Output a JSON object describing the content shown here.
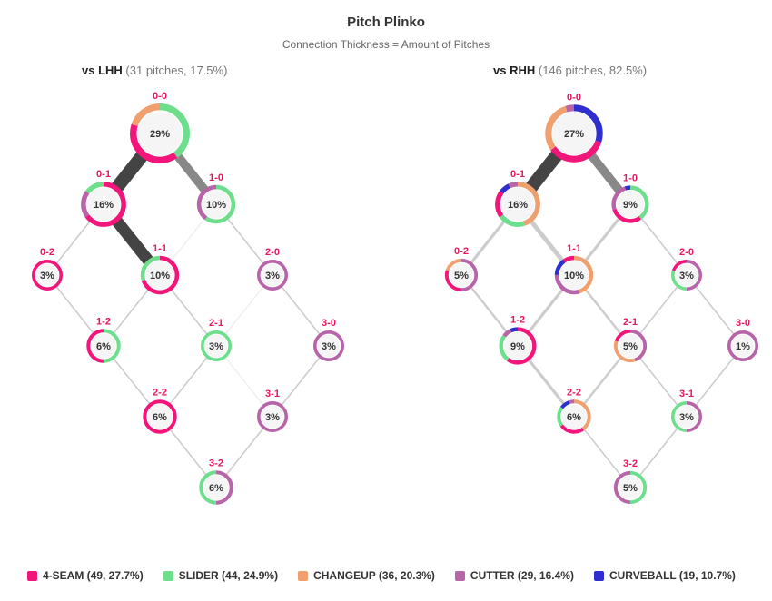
{
  "title": "Pitch Plinko",
  "subtitle": "Connection Thickness = Amount of Pitches",
  "colors": {
    "4SEAM": "#f2157a",
    "SLIDER": "#6ddf8c",
    "CHANGEUP": "#f0a06e",
    "CUTTER": "#b764a8",
    "CURVEBALL": "#2f2fd0"
  },
  "legend": [
    {
      "key": "4SEAM",
      "label": "4-SEAM (49, 27.7%)"
    },
    {
      "key": "SLIDER",
      "label": "SLIDER (44, 24.9%)"
    },
    {
      "key": "CHANGEUP",
      "label": "CHANGEUP (36, 20.3%)"
    },
    {
      "key": "CUTTER",
      "label": "CUTTER (29, 16.4%)"
    },
    {
      "key": "CURVEBALL",
      "label": "CURVEBALL (10.7%)"
    }
  ],
  "chart_data": [
    {
      "type": "plinko",
      "panel": "lhh",
      "title_bold": "vs LHH",
      "title_meta": "(31 pitches, 17.5%)",
      "nodes": [
        {
          "count": "0-0",
          "label": "29%",
          "pct": 29,
          "mix": [
            {
              "p": "SLIDER",
              "v": 0.4
            },
            {
              "p": "4SEAM",
              "v": 0.4
            },
            {
              "p": "CHANGEUP",
              "v": 0.2
            }
          ]
        },
        {
          "count": "0-1",
          "label": "16%",
          "pct": 16,
          "mix": [
            {
              "p": "4SEAM",
              "v": 0.65
            },
            {
              "p": "CUTTER",
              "v": 0.2
            },
            {
              "p": "SLIDER",
              "v": 0.15
            }
          ]
        },
        {
          "count": "1-0",
          "label": "10%",
          "pct": 10,
          "mix": [
            {
              "p": "SLIDER",
              "v": 0.6
            },
            {
              "p": "CUTTER",
              "v": 0.4
            }
          ]
        },
        {
          "count": "0-2",
          "label": "3%",
          "pct": 3,
          "mix": [
            {
              "p": "4SEAM",
              "v": 1.0
            }
          ]
        },
        {
          "count": "1-1",
          "label": "10%",
          "pct": 10,
          "mix": [
            {
              "p": "4SEAM",
              "v": 0.7
            },
            {
              "p": "SLIDER",
              "v": 0.3
            }
          ]
        },
        {
          "count": "2-0",
          "label": "3%",
          "pct": 3,
          "mix": [
            {
              "p": "CUTTER",
              "v": 1.0
            }
          ]
        },
        {
          "count": "1-2",
          "label": "6%",
          "pct": 6,
          "mix": [
            {
              "p": "SLIDER",
              "v": 0.5
            },
            {
              "p": "4SEAM",
              "v": 0.5
            }
          ]
        },
        {
          "count": "2-1",
          "label": "3%",
          "pct": 3,
          "mix": [
            {
              "p": "SLIDER",
              "v": 1.0
            }
          ]
        },
        {
          "count": "3-0",
          "label": "3%",
          "pct": 3,
          "mix": [
            {
              "p": "CUTTER",
              "v": 1.0
            }
          ]
        },
        {
          "count": "2-2",
          "label": "6%",
          "pct": 6,
          "mix": [
            {
              "p": "4SEAM",
              "v": 1.0
            }
          ]
        },
        {
          "count": "3-1",
          "label": "3%",
          "pct": 3,
          "mix": [
            {
              "p": "CUTTER",
              "v": 1.0
            }
          ]
        },
        {
          "count": "3-2",
          "label": "6%",
          "pct": 6,
          "mix": [
            {
              "p": "CUTTER",
              "v": 0.5
            },
            {
              "p": "SLIDER",
              "v": 0.5
            }
          ]
        }
      ],
      "links": [
        {
          "from": "0-0",
          "to": "0-1",
          "w": 9
        },
        {
          "from": "0-0",
          "to": "1-0",
          "w": 6
        },
        {
          "from": "0-1",
          "to": "0-2",
          "w": 1
        },
        {
          "from": "0-1",
          "to": "1-1",
          "w": 8
        },
        {
          "from": "1-0",
          "to": "1-1",
          "w": 0.5
        },
        {
          "from": "1-0",
          "to": "2-0",
          "w": 1
        },
        {
          "from": "0-2",
          "to": "1-2",
          "w": 1
        },
        {
          "from": "1-1",
          "to": "1-2",
          "w": 1
        },
        {
          "from": "1-1",
          "to": "2-1",
          "w": 1
        },
        {
          "from": "2-0",
          "to": "2-1",
          "w": 0.5
        },
        {
          "from": "2-0",
          "to": "3-0",
          "w": 1
        },
        {
          "from": "1-2",
          "to": "2-2",
          "w": 1
        },
        {
          "from": "2-1",
          "to": "2-2",
          "w": 1
        },
        {
          "from": "2-1",
          "to": "3-1",
          "w": 0.5
        },
        {
          "from": "3-0",
          "to": "3-1",
          "w": 1
        },
        {
          "from": "2-2",
          "to": "3-2",
          "w": 1
        },
        {
          "from": "3-1",
          "to": "3-2",
          "w": 1
        }
      ]
    },
    {
      "type": "plinko",
      "panel": "rhh",
      "title_bold": "vs RHH",
      "title_meta": "(146 pitches, 82.5%)",
      "nodes": [
        {
          "count": "0-0",
          "label": "27%",
          "pct": 27,
          "mix": [
            {
              "p": "CURVEBALL",
              "v": 0.3
            },
            {
              "p": "4SEAM",
              "v": 0.35
            },
            {
              "p": "CHANGEUP",
              "v": 0.3
            },
            {
              "p": "CUTTER",
              "v": 0.05
            }
          ]
        },
        {
          "count": "0-1",
          "label": "16%",
          "pct": 16,
          "mix": [
            {
              "p": "CHANGEUP",
              "v": 0.45
            },
            {
              "p": "SLIDER",
              "v": 0.2
            },
            {
              "p": "4SEAM",
              "v": 0.2
            },
            {
              "p": "CURVEBALL",
              "v": 0.08
            },
            {
              "p": "CUTTER",
              "v": 0.07
            }
          ]
        },
        {
          "count": "1-0",
          "label": "9%",
          "pct": 9,
          "mix": [
            {
              "p": "SLIDER",
              "v": 0.4
            },
            {
              "p": "4SEAM",
              "v": 0.3
            },
            {
              "p": "CUTTER",
              "v": 0.25
            },
            {
              "p": "CURVEBALL",
              "v": 0.05
            }
          ]
        },
        {
          "count": "0-2",
          "label": "5%",
          "pct": 5,
          "mix": [
            {
              "p": "CUTTER",
              "v": 0.5
            },
            {
              "p": "4SEAM",
              "v": 0.3
            },
            {
              "p": "CHANGEUP",
              "v": 0.2
            }
          ]
        },
        {
          "count": "1-1",
          "label": "10%",
          "pct": 10,
          "mix": [
            {
              "p": "CHANGEUP",
              "v": 0.45
            },
            {
              "p": "CUTTER",
              "v": 0.3
            },
            {
              "p": "CURVEBALL",
              "v": 0.15
            },
            {
              "p": "4SEAM",
              "v": 0.1
            }
          ]
        },
        {
          "count": "2-0",
          "label": "3%",
          "pct": 3,
          "mix": [
            {
              "p": "CUTTER",
              "v": 0.5
            },
            {
              "p": "SLIDER",
              "v": 0.3
            },
            {
              "p": "4SEAM",
              "v": 0.2
            }
          ]
        },
        {
          "count": "1-2",
          "label": "9%",
          "pct": 9,
          "mix": [
            {
              "p": "4SEAM",
              "v": 0.6
            },
            {
              "p": "SLIDER",
              "v": 0.25
            },
            {
              "p": "CUTTER",
              "v": 0.08
            },
            {
              "p": "CURVEBALL",
              "v": 0.07
            }
          ]
        },
        {
          "count": "2-1",
          "label": "5%",
          "pct": 5,
          "mix": [
            {
              "p": "CUTTER",
              "v": 0.45
            },
            {
              "p": "CHANGEUP",
              "v": 0.35
            },
            {
              "p": "4SEAM",
              "v": 0.2
            }
          ]
        },
        {
          "count": "3-0",
          "label": "1%",
          "pct": 1,
          "mix": [
            {
              "p": "CUTTER",
              "v": 1.0
            }
          ]
        },
        {
          "count": "2-2",
          "label": "6%",
          "pct": 6,
          "mix": [
            {
              "p": "CHANGEUP",
              "v": 0.4
            },
            {
              "p": "4SEAM",
              "v": 0.25
            },
            {
              "p": "SLIDER",
              "v": 0.2
            },
            {
              "p": "CURVEBALL",
              "v": 0.1
            },
            {
              "p": "CUTTER",
              "v": 0.05
            }
          ]
        },
        {
          "count": "3-1",
          "label": "3%",
          "pct": 3,
          "mix": [
            {
              "p": "CUTTER",
              "v": 0.5
            },
            {
              "p": "SLIDER",
              "v": 0.5
            }
          ]
        },
        {
          "count": "3-2",
          "label": "5%",
          "pct": 5,
          "mix": [
            {
              "p": "SLIDER",
              "v": 0.5
            },
            {
              "p": "CUTTER",
              "v": 0.5
            }
          ]
        }
      ],
      "links": [
        {
          "from": "0-0",
          "to": "0-1",
          "w": 9
        },
        {
          "from": "0-0",
          "to": "1-0",
          "w": 6
        },
        {
          "from": "0-1",
          "to": "0-2",
          "w": 2
        },
        {
          "from": "0-1",
          "to": "1-1",
          "w": 3
        },
        {
          "from": "1-0",
          "to": "1-1",
          "w": 2
        },
        {
          "from": "1-0",
          "to": "2-0",
          "w": 1
        },
        {
          "from": "0-2",
          "to": "1-2",
          "w": 1.5
        },
        {
          "from": "1-1",
          "to": "1-2",
          "w": 2
        },
        {
          "from": "1-1",
          "to": "2-1",
          "w": 1.5
        },
        {
          "from": "2-0",
          "to": "2-1",
          "w": 1
        },
        {
          "from": "2-0",
          "to": "3-0",
          "w": 1
        },
        {
          "from": "1-2",
          "to": "2-2",
          "w": 2
        },
        {
          "from": "2-1",
          "to": "2-2",
          "w": 1.5
        },
        {
          "from": "2-1",
          "to": "3-1",
          "w": 1
        },
        {
          "from": "3-0",
          "to": "3-1",
          "w": 1
        },
        {
          "from": "2-2",
          "to": "3-2",
          "w": 1
        },
        {
          "from": "3-1",
          "to": "3-2",
          "w": 1
        }
      ]
    }
  ]
}
